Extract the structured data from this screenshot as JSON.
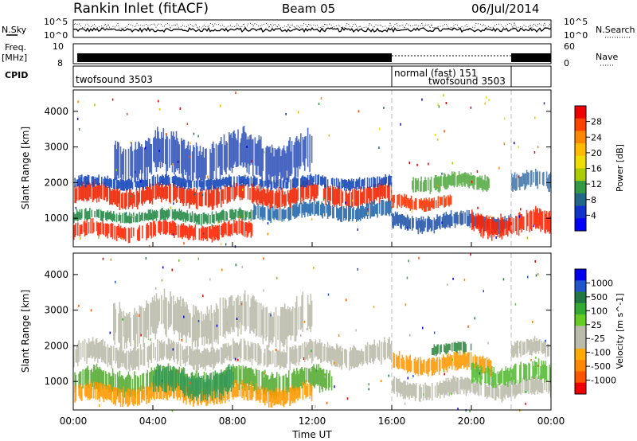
{
  "header": {
    "station": "Rankin Inlet (fitACF)",
    "beam": "Beam 05",
    "date": "06/Jul/2014"
  },
  "noise_panel": {
    "left_label": "N.Sky",
    "right_label": "N.Search",
    "left_ticks": [
      "10^5",
      "10^0"
    ],
    "right_ticks": [
      "10^5",
      "10^0"
    ]
  },
  "freq_panel": {
    "left_label_1": "Freq.",
    "left_label_2": "[MHz]",
    "left_ticks": [
      "10",
      "8"
    ],
    "right_label": "Nave",
    "right_ticks": [
      "60",
      "0"
    ]
  },
  "cpid_panel": {
    "label": "CPID",
    "segments": [
      {
        "name": "twofsound 3503",
        "start_hour": 0,
        "end_hour": 16
      },
      {
        "name": "normal (fast) 151",
        "start_hour": 16,
        "end_hour": 22
      },
      {
        "name": "twofsound 3503",
        "start_hour": 22,
        "end_hour": 24
      }
    ]
  },
  "chart_data": [
    {
      "type": "heatmap",
      "name": "power-panel",
      "xlabel": "",
      "ylabel": "Slant Range [km]",
      "xlim_hours": [
        0,
        24
      ],
      "ylim": [
        200,
        4600
      ],
      "yticks": [
        1000,
        2000,
        3000,
        4000
      ],
      "colorbar": {
        "label": "Power [dB]",
        "ticks": [
          "28",
          "24",
          "20",
          "16",
          "12",
          "8",
          "4"
        ],
        "colors": [
          "#ee0000",
          "#ff4400",
          "#ff8800",
          "#ffbb00",
          "#eedd00",
          "#aacc00",
          "#339944",
          "#226688",
          "#1133cc",
          "#0000ff"
        ]
      },
      "bands": [
        {
          "from": 0,
          "to": 16,
          "center": 1650,
          "width": 450,
          "color": "#ee2200"
        },
        {
          "from": 0,
          "to": 16,
          "center": 2000,
          "width": 250,
          "color": "#1144bb"
        },
        {
          "from": 0,
          "to": 9,
          "center": 650,
          "width": 350,
          "color": "#ff2200"
        },
        {
          "from": 0,
          "to": 9,
          "center": 1050,
          "width": 250,
          "color": "#228844"
        },
        {
          "from": 2,
          "to": 12,
          "center": 2700,
          "width": 900,
          "color": "#3355bb"
        },
        {
          "from": 9,
          "to": 16,
          "center": 1200,
          "width": 350,
          "color": "#2266aa"
        },
        {
          "from": 16,
          "to": 19,
          "center": 1450,
          "width": 300,
          "color": "#ff3300"
        },
        {
          "from": 17,
          "to": 21,
          "center": 2000,
          "width": 350,
          "color": "#55aa44"
        },
        {
          "from": 16,
          "to": 22,
          "center": 900,
          "width": 350,
          "color": "#2255aa"
        },
        {
          "from": 20,
          "to": 24,
          "center": 850,
          "width": 500,
          "color": "#ff2200"
        },
        {
          "from": 22,
          "to": 24,
          "center": 2000,
          "width": 400,
          "color": "#4477aa"
        }
      ]
    },
    {
      "type": "heatmap",
      "name": "velocity-panel",
      "xlabel": "Time UT",
      "ylabel": "Slant Range [km]",
      "xlim_hours": [
        0,
        24
      ],
      "ylim": [
        200,
        4600
      ],
      "yticks": [
        1000,
        2000,
        3000,
        4000
      ],
      "xticks": [
        "00:00",
        "04:00",
        "08:00",
        "12:00",
        "16:00",
        "20:00",
        "00:00"
      ],
      "colorbar": {
        "label": "Velocity [m s^-1]",
        "ticks": [
          "1000",
          "500",
          "100",
          "25",
          "-25",
          "-100",
          "-500",
          "-1000"
        ],
        "colors": [
          "#0000ee",
          "#2255cc",
          "#227744",
          "#33aa33",
          "#66cc22",
          "#bbbbaa",
          "#bbbbaa",
          "#ffaa00",
          "#ff8800",
          "#ff5500",
          "#ee0000"
        ]
      },
      "bands": [
        {
          "from": 0,
          "to": 16,
          "center": 1750,
          "width": 500,
          "color": "#bbbbaa"
        },
        {
          "from": 0,
          "to": 13,
          "center": 1000,
          "width": 550,
          "color": "#55aa33"
        },
        {
          "from": 0,
          "to": 12,
          "center": 650,
          "width": 400,
          "color": "#ff9900"
        },
        {
          "from": 4,
          "to": 8,
          "center": 950,
          "width": 600,
          "color": "#339955"
        },
        {
          "from": 2,
          "to": 12,
          "center": 2700,
          "width": 900,
          "color": "#bbbbaa"
        },
        {
          "from": 16,
          "to": 21,
          "center": 1500,
          "width": 400,
          "color": "#ff9900"
        },
        {
          "from": 18,
          "to": 20,
          "center": 1900,
          "width": 250,
          "color": "#338844"
        },
        {
          "from": 16,
          "to": 24,
          "center": 800,
          "width": 400,
          "color": "#bbbbaa"
        },
        {
          "from": 20,
          "to": 24,
          "center": 1200,
          "width": 450,
          "color": "#55bb33"
        },
        {
          "from": 22,
          "to": 24,
          "center": 1900,
          "width": 400,
          "color": "#bbbbaa"
        }
      ]
    }
  ]
}
